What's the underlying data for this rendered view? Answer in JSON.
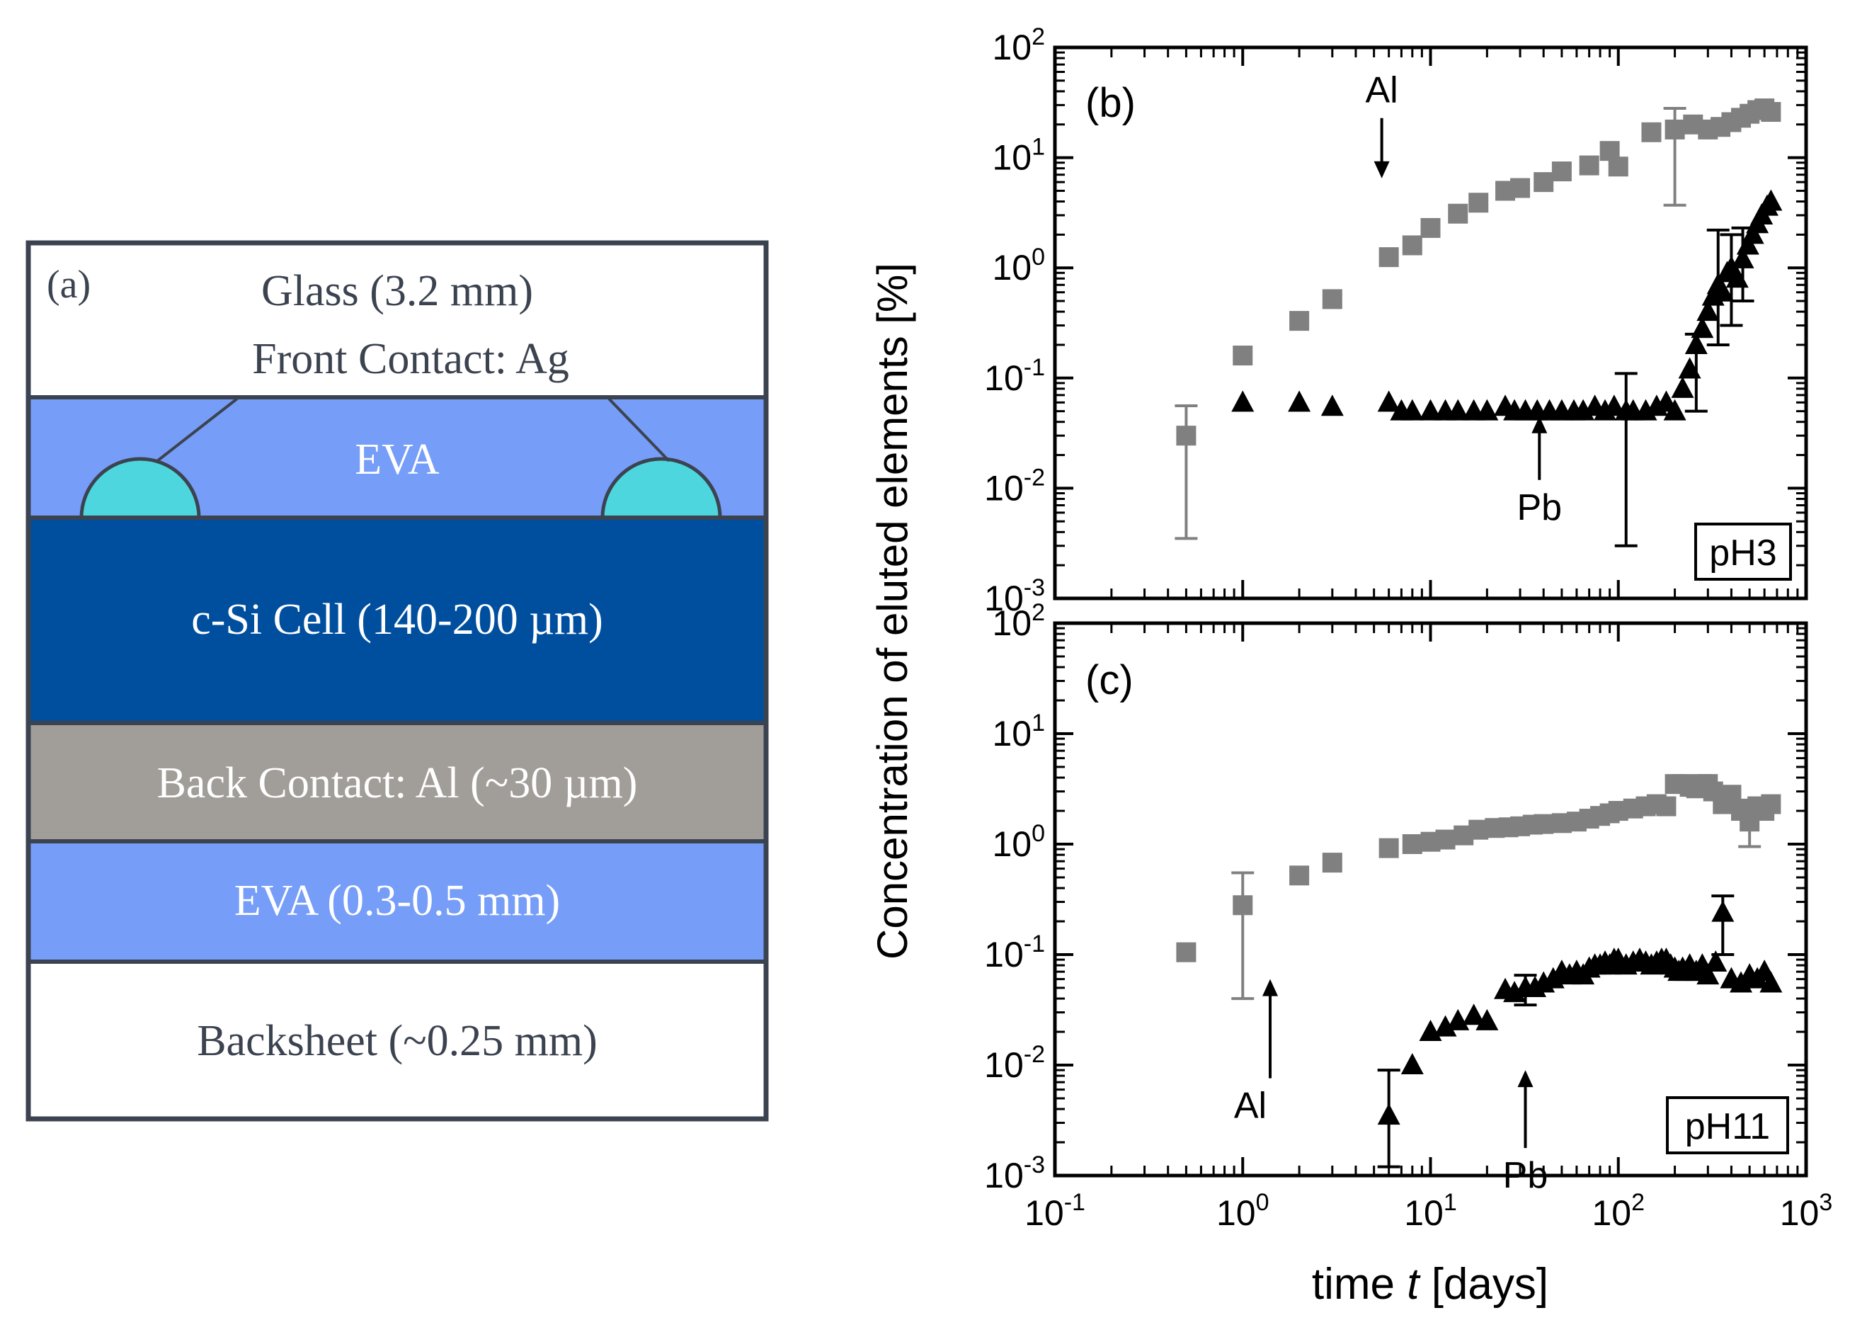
{
  "colors": {
    "glass": "#ffffff",
    "eva_light": "#769df7",
    "ag_contact": "#4dd6de",
    "cell": "#004f9f",
    "back_contact": "#a19d99",
    "backsheet": "#ffffff",
    "al_marker": "#808080",
    "pb_marker": "#000000",
    "outline": "#3c4350",
    "light_text": "#ffffff",
    "dark_text": "#3c4350"
  },
  "panel_a": {
    "label": "(a)",
    "layers": [
      {
        "key": "glass",
        "text": "Glass (3.2 mm)"
      },
      {
        "key": "front_contact",
        "text": "Front Contact: Ag"
      },
      {
        "key": "eva_top",
        "text": "EVA"
      },
      {
        "key": "cell",
        "text": "c-Si Cell (140-200 µm)"
      },
      {
        "key": "back_contact",
        "text": "Back Contact: Al (~30 µm)"
      },
      {
        "key": "eva_bottom",
        "text": "EVA (0.3-0.5 mm)"
      },
      {
        "key": "backsheet",
        "text": "Backsheet (~0.25 mm)"
      }
    ]
  },
  "chart_data": [
    {
      "type": "scatter",
      "panel_label": "(b)",
      "ph_label": "pH3",
      "xscale": "log",
      "yscale": "log",
      "xlim": [
        0.1,
        1000
      ],
      "ylim": [
        0.001,
        100
      ],
      "xlabel": "",
      "ylabel": "Concentration of eluted elements [%]",
      "annotations": [
        {
          "text": "Al",
          "arrow_dir": "down",
          "x": 5.5,
          "y": 6.5
        },
        {
          "text": "Pb",
          "arrow_dir": "up",
          "x": 38,
          "y": 0.045
        }
      ],
      "series": [
        {
          "name": "Al",
          "marker": "square",
          "color": "#808080",
          "x": [
            0.5,
            1,
            2,
            3,
            6,
            8,
            10,
            14,
            18,
            25,
            30,
            40,
            50,
            70,
            90,
            100,
            150,
            200,
            250,
            300,
            350,
            400,
            450,
            500,
            550,
            600,
            650
          ],
          "y": [
            0.03,
            0.16,
            0.33,
            0.52,
            1.25,
            1.6,
            2.3,
            3.1,
            3.9,
            5.0,
            5.3,
            6.0,
            7.5,
            8.5,
            11.5,
            8.3,
            17,
            18,
            20,
            18,
            19,
            21,
            23,
            25,
            27,
            28,
            26
          ],
          "errors": [
            {
              "x": 0.5,
              "low": 0.0035,
              "high": 0.056
            },
            {
              "x": 200,
              "low": 3.7,
              "high": 28
            }
          ]
        },
        {
          "name": "Pb",
          "marker": "triangle",
          "color": "#000000",
          "x": [
            1,
            2,
            3,
            6,
            7,
            8,
            10,
            12,
            14,
            17,
            20,
            25,
            28,
            32,
            37,
            43,
            50,
            58,
            65,
            75,
            85,
            95,
            110,
            120,
            140,
            160,
            180,
            200,
            220,
            240,
            260,
            280,
            300,
            320,
            340,
            360,
            380,
            400,
            430,
            460,
            490,
            520,
            550,
            580,
            620,
            650
          ],
          "y": [
            0.06,
            0.06,
            0.055,
            0.06,
            0.05,
            0.05,
            0.05,
            0.05,
            0.05,
            0.05,
            0.05,
            0.055,
            0.05,
            0.05,
            0.05,
            0.05,
            0.05,
            0.05,
            0.05,
            0.055,
            0.05,
            0.055,
            0.05,
            0.05,
            0.05,
            0.055,
            0.06,
            0.05,
            0.08,
            0.12,
            0.2,
            0.28,
            0.4,
            0.55,
            0.7,
            0.6,
            0.9,
            1.0,
            0.8,
            1.2,
            1.6,
            2.0,
            2.5,
            3.0,
            3.6,
            4.0
          ],
          "errors": [
            {
              "x": 110,
              "low": 0.003,
              "high": 0.11
            },
            {
              "x": 260,
              "low": 0.05,
              "high": 0.25
            },
            {
              "x": 340,
              "low": 0.2,
              "high": 2.2
            },
            {
              "x": 400,
              "low": 0.3,
              "high": 2.0
            },
            {
              "x": 460,
              "low": 0.5,
              "high": 2.3
            }
          ]
        }
      ]
    },
    {
      "type": "scatter",
      "panel_label": "(c)",
      "ph_label": "pH11",
      "xscale": "log",
      "yscale": "log",
      "xlim": [
        0.1,
        1000
      ],
      "ylim": [
        0.001,
        100
      ],
      "xlabel": "time t [days]",
      "ylabel": "",
      "annotations": [
        {
          "text": "Al",
          "arrow_dir": "up",
          "x": 1.4,
          "y": 0.06
        },
        {
          "text": "Pb",
          "arrow_dir": "up",
          "x": 32,
          "y": 0.009
        }
      ],
      "series": [
        {
          "name": "Al",
          "marker": "square",
          "color": "#808080",
          "x": [
            0.5,
            1,
            2,
            3,
            6,
            8,
            10,
            12,
            15,
            18,
            22,
            26,
            30,
            35,
            40,
            50,
            60,
            70,
            80,
            90,
            100,
            120,
            140,
            160,
            180,
            200,
            220,
            240,
            260,
            280,
            300,
            320,
            360,
            400,
            450,
            500,
            550,
            600,
            650
          ],
          "y": [
            0.105,
            0.28,
            0.52,
            0.68,
            0.92,
            1.0,
            1.05,
            1.1,
            1.2,
            1.35,
            1.4,
            1.42,
            1.45,
            1.5,
            1.52,
            1.55,
            1.6,
            1.7,
            1.8,
            1.9,
            2.0,
            2.1,
            2.2,
            2.3,
            2.2,
            3.5,
            3.5,
            3.3,
            3.2,
            3.5,
            3.5,
            3.0,
            2.3,
            2.8,
            2.0,
            1.6,
            2.2,
            2.0,
            2.3
          ],
          "errors": [
            {
              "x": 1,
              "low": 0.04,
              "high": 0.55
            },
            {
              "x": 500,
              "low": 0.95,
              "high": 2.5
            }
          ]
        },
        {
          "name": "Pb",
          "marker": "triangle",
          "color": "#000000",
          "x": [
            6,
            8,
            10,
            12,
            14,
            17,
            20,
            25,
            28,
            32,
            36,
            40,
            45,
            50,
            55,
            60,
            65,
            70,
            75,
            80,
            85,
            90,
            95,
            100,
            110,
            120,
            130,
            140,
            150,
            160,
            170,
            180,
            190,
            200,
            210,
            220,
            230,
            240,
            260,
            280,
            300,
            330,
            360,
            400,
            450,
            500,
            550,
            600,
            650
          ],
          "y": [
            0.0035,
            0.01,
            0.02,
            0.022,
            0.025,
            0.028,
            0.025,
            0.048,
            0.045,
            0.05,
            0.05,
            0.055,
            0.06,
            0.07,
            0.065,
            0.07,
            0.065,
            0.075,
            0.08,
            0.08,
            0.085,
            0.08,
            0.09,
            0.09,
            0.08,
            0.085,
            0.09,
            0.085,
            0.08,
            0.085,
            0.09,
            0.09,
            0.08,
            0.075,
            0.07,
            0.075,
            0.07,
            0.08,
            0.07,
            0.08,
            0.065,
            0.085,
            0.24,
            0.06,
            0.055,
            0.065,
            0.06,
            0.07,
            0.055
          ],
          "errors": [
            {
              "x": 6,
              "low": 0.0012,
              "high": 0.009
            },
            {
              "x": 32,
              "low": 0.035,
              "high": 0.065
            },
            {
              "x": 360,
              "low": 0.1,
              "high": 0.34
            }
          ]
        }
      ]
    }
  ],
  "axes": {
    "x_tick_labels": [
      {
        "base": "10",
        "exp": "-1"
      },
      {
        "base": "10",
        "exp": "0"
      },
      {
        "base": "10",
        "exp": "1"
      },
      {
        "base": "10",
        "exp": "2"
      },
      {
        "base": "10",
        "exp": "3"
      }
    ],
    "y_tick_labels": [
      {
        "base": "10",
        "exp": "-3"
      },
      {
        "base": "10",
        "exp": "-2"
      },
      {
        "base": "10",
        "exp": "-1"
      },
      {
        "base": "10",
        "exp": "0"
      },
      {
        "base": "10",
        "exp": "1"
      },
      {
        "base": "10",
        "exp": "2"
      }
    ],
    "xlabel_prefix": "time ",
    "xlabel_italic": "t",
    "xlabel_suffix": " [days]",
    "ylabel": "Concentration of eluted elements [%]"
  }
}
